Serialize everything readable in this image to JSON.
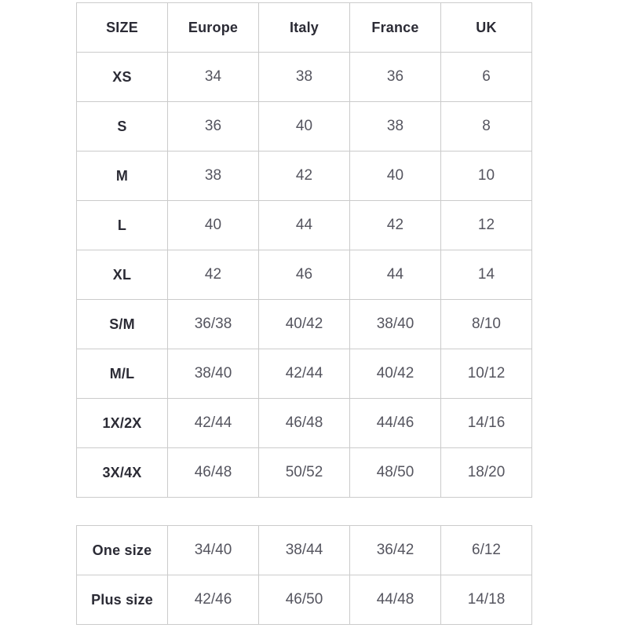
{
  "colors": {
    "background": "#ffffff",
    "border": "#cbcbcb",
    "header_text": "#2b2b35",
    "value_text": "#55555f"
  },
  "chart_data": [
    {
      "type": "table",
      "columns": [
        "SIZE",
        "Europe",
        "Italy",
        "France",
        "UK"
      ],
      "rows": [
        [
          "XS",
          "34",
          "38",
          "36",
          "6"
        ],
        [
          "S",
          "36",
          "40",
          "38",
          "8"
        ],
        [
          "M",
          "38",
          "42",
          "40",
          "10"
        ],
        [
          "L",
          "40",
          "44",
          "42",
          "12"
        ],
        [
          "XL",
          "42",
          "46",
          "44",
          "14"
        ],
        [
          "S/M",
          "36/38",
          "40/42",
          "38/40",
          "8/10"
        ],
        [
          "M/L",
          "38/40",
          "42/44",
          "40/42",
          "10/12"
        ],
        [
          "1X/2X",
          "42/44",
          "46/48",
          "44/46",
          "14/16"
        ],
        [
          "3X/4X",
          "46/48",
          "50/52",
          "48/50",
          "18/20"
        ]
      ]
    },
    {
      "type": "table",
      "rows": [
        [
          "One size",
          "34/40",
          "38/44",
          "36/42",
          "6/12"
        ],
        [
          "Plus size",
          "42/46",
          "46/50",
          "44/48",
          "14/18"
        ]
      ]
    }
  ]
}
